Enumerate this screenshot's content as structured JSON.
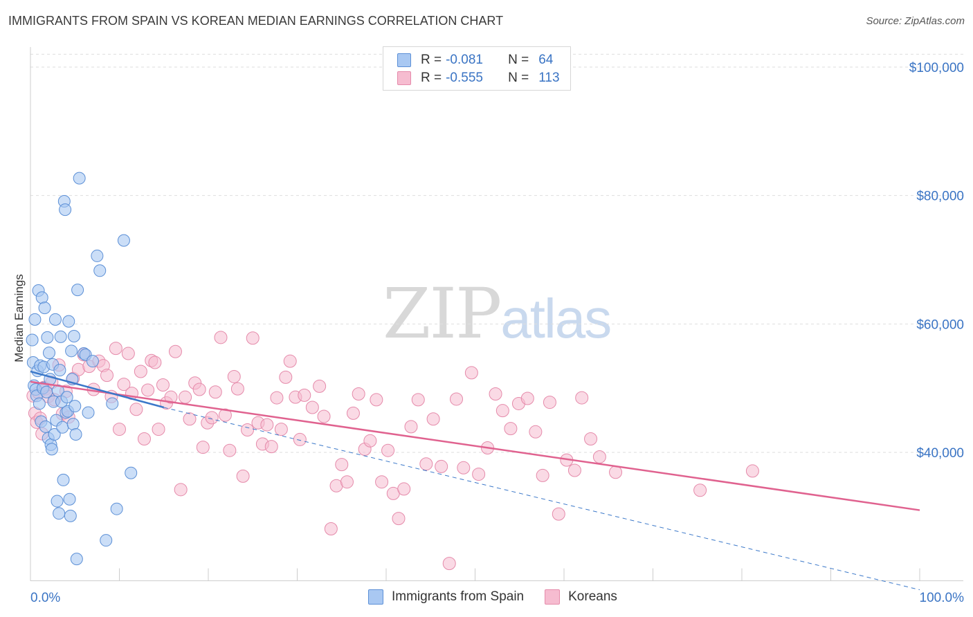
{
  "header": {
    "title": "IMMIGRANTS FROM SPAIN VS KOREAN MEDIAN EARNINGS CORRELATION CHART",
    "source": "Source: ZipAtlas.com"
  },
  "watermark": {
    "zip": "ZIP",
    "atlas": "atlas"
  },
  "legend": {
    "rows": [
      {
        "r_label": "R =",
        "r_value": "-0.081",
        "n_label": "N =",
        "n_value": "64"
      },
      {
        "r_label": "R =",
        "r_value": "-0.555",
        "n_label": "N =",
        "n_value": "113"
      }
    ]
  },
  "colors": {
    "spain_fill": "#a9c8f2",
    "spain_stroke": "#5b8fd6",
    "spain_line": "#3b78c9",
    "korean_fill": "#f6bcd0",
    "korean_stroke": "#e58aaa",
    "korean_line": "#e0628f",
    "axis_text": "#3a74c4",
    "grid": "#dedede"
  },
  "chart_data": {
    "type": "scatter",
    "title": "IMMIGRANTS FROM SPAIN VS KOREAN MEDIAN EARNINGS CORRELATION CHART",
    "xlabel": "",
    "ylabel": "Median Earnings",
    "xlim": [
      0,
      100
    ],
    "ylim": [
      20000,
      102000
    ],
    "x_tick_labels": [
      "0.0%",
      "100.0%"
    ],
    "y_ticks": [
      40000,
      60000,
      80000,
      100000
    ],
    "y_tick_labels": [
      "$40,000",
      "$60,000",
      "$80,000",
      "$100,000"
    ],
    "grid": true,
    "series": [
      {
        "name": "Immigrants from Spain",
        "r": -0.081,
        "n": 64,
        "trend": {
          "x": [
            0,
            15
          ],
          "y": [
            52600,
            47000
          ]
        },
        "trend_extended": {
          "x": [
            15,
            100
          ],
          "y": [
            47000,
            18600
          ]
        },
        "points": [
          [
            0.2,
            57500
          ],
          [
            0.3,
            54000
          ],
          [
            0.4,
            50400
          ],
          [
            0.5,
            60700
          ],
          [
            0.6,
            49800
          ],
          [
            0.7,
            48800
          ],
          [
            0.8,
            52700
          ],
          [
            0.9,
            65200
          ],
          [
            1.0,
            47600
          ],
          [
            1.1,
            53500
          ],
          [
            1.2,
            44800
          ],
          [
            1.3,
            64100
          ],
          [
            1.4,
            50000
          ],
          [
            1.5,
            53300
          ],
          [
            1.6,
            62500
          ],
          [
            1.7,
            44000
          ],
          [
            1.8,
            49400
          ],
          [
            1.9,
            57900
          ],
          [
            2.0,
            42200
          ],
          [
            2.1,
            55500
          ],
          [
            2.2,
            51400
          ],
          [
            2.3,
            41200
          ],
          [
            2.4,
            40500
          ],
          [
            2.5,
            53700
          ],
          [
            2.6,
            47900
          ],
          [
            2.7,
            42800
          ],
          [
            2.8,
            60700
          ],
          [
            2.9,
            45000
          ],
          [
            3.0,
            32400
          ],
          [
            3.1,
            49600
          ],
          [
            3.2,
            30500
          ],
          [
            3.3,
            52800
          ],
          [
            3.4,
            58000
          ],
          [
            3.5,
            47900
          ],
          [
            3.6,
            43900
          ],
          [
            3.7,
            35700
          ],
          [
            3.8,
            79100
          ],
          [
            3.9,
            77800
          ],
          [
            4.0,
            46200
          ],
          [
            4.1,
            48600
          ],
          [
            4.2,
            46400
          ],
          [
            4.3,
            60400
          ],
          [
            4.4,
            32700
          ],
          [
            4.5,
            30100
          ],
          [
            4.6,
            55800
          ],
          [
            4.7,
            51400
          ],
          [
            4.8,
            44400
          ],
          [
            4.9,
            58100
          ],
          [
            5.0,
            47200
          ],
          [
            5.1,
            42800
          ],
          [
            5.2,
            23400
          ],
          [
            5.3,
            65300
          ],
          [
            5.5,
            82700
          ],
          [
            6.0,
            55400
          ],
          [
            6.2,
            55200
          ],
          [
            6.5,
            46200
          ],
          [
            7.0,
            54200
          ],
          [
            7.5,
            70600
          ],
          [
            7.8,
            68300
          ],
          [
            8.5,
            26300
          ],
          [
            9.2,
            47600
          ],
          [
            9.7,
            31200
          ],
          [
            10.5,
            73000
          ],
          [
            11.3,
            36800
          ]
        ]
      },
      {
        "name": "Koreans",
        "r": -0.555,
        "n": 113,
        "trend": {
          "x": [
            0,
            100
          ],
          "y": [
            51000,
            31000
          ]
        },
        "points": [
          [
            0.3,
            48800
          ],
          [
            0.5,
            46100
          ],
          [
            0.7,
            44700
          ],
          [
            0.9,
            49300
          ],
          [
            1.1,
            45300
          ],
          [
            1.3,
            42900
          ],
          [
            1.5,
            50100
          ],
          [
            1.7,
            49900
          ],
          [
            2.0,
            48700
          ],
          [
            2.4,
            50900
          ],
          [
            2.7,
            48200
          ],
          [
            3.2,
            53600
          ],
          [
            3.6,
            46000
          ],
          [
            4.0,
            49500
          ],
          [
            4.3,
            45500
          ],
          [
            4.8,
            51500
          ],
          [
            5.4,
            52900
          ],
          [
            6.0,
            55200
          ],
          [
            6.6,
            53400
          ],
          [
            7.1,
            49800
          ],
          [
            7.7,
            54200
          ],
          [
            8.2,
            53500
          ],
          [
            8.6,
            52000
          ],
          [
            9.1,
            48700
          ],
          [
            9.6,
            56200
          ],
          [
            10.0,
            43600
          ],
          [
            10.5,
            50600
          ],
          [
            11.0,
            55400
          ],
          [
            11.4,
            49200
          ],
          [
            11.9,
            46700
          ],
          [
            12.4,
            52600
          ],
          [
            12.8,
            42100
          ],
          [
            13.2,
            49700
          ],
          [
            13.6,
            54300
          ],
          [
            14.0,
            54000
          ],
          [
            14.4,
            43600
          ],
          [
            14.9,
            50500
          ],
          [
            15.3,
            47700
          ],
          [
            15.8,
            48600
          ],
          [
            16.3,
            55700
          ],
          [
            16.9,
            34200
          ],
          [
            17.4,
            48600
          ],
          [
            17.9,
            45200
          ],
          [
            18.5,
            50800
          ],
          [
            19.0,
            49800
          ],
          [
            19.4,
            40800
          ],
          [
            19.9,
            44600
          ],
          [
            20.4,
            45400
          ],
          [
            20.8,
            49400
          ],
          [
            21.4,
            57900
          ],
          [
            21.9,
            45800
          ],
          [
            22.4,
            40300
          ],
          [
            22.9,
            51800
          ],
          [
            23.3,
            49900
          ],
          [
            23.9,
            36300
          ],
          [
            24.4,
            43500
          ],
          [
            25.0,
            57800
          ],
          [
            25.6,
            44600
          ],
          [
            26.1,
            41300
          ],
          [
            26.6,
            44300
          ],
          [
            27.1,
            40900
          ],
          [
            27.7,
            48500
          ],
          [
            28.2,
            43600
          ],
          [
            28.7,
            51700
          ],
          [
            29.2,
            54200
          ],
          [
            29.8,
            48600
          ],
          [
            30.3,
            42000
          ],
          [
            30.8,
            48900
          ],
          [
            31.7,
            47000
          ],
          [
            32.5,
            50300
          ],
          [
            33.0,
            45600
          ],
          [
            33.8,
            28100
          ],
          [
            34.4,
            34800
          ],
          [
            35.0,
            38100
          ],
          [
            35.6,
            35400
          ],
          [
            36.3,
            46100
          ],
          [
            36.9,
            49100
          ],
          [
            37.6,
            40500
          ],
          [
            38.2,
            41800
          ],
          [
            38.9,
            48200
          ],
          [
            39.5,
            35400
          ],
          [
            40.2,
            40300
          ],
          [
            40.8,
            33600
          ],
          [
            41.4,
            29700
          ],
          [
            42.0,
            34300
          ],
          [
            42.8,
            44000
          ],
          [
            43.6,
            48200
          ],
          [
            44.5,
            38200
          ],
          [
            45.3,
            45200
          ],
          [
            46.2,
            37800
          ],
          [
            47.1,
            22700
          ],
          [
            47.9,
            48300
          ],
          [
            48.7,
            37600
          ],
          [
            49.6,
            52400
          ],
          [
            50.4,
            36600
          ],
          [
            51.4,
            40700
          ],
          [
            52.3,
            49100
          ],
          [
            53.1,
            46500
          ],
          [
            54.0,
            43700
          ],
          [
            54.9,
            47600
          ],
          [
            55.9,
            48400
          ],
          [
            56.8,
            43200
          ],
          [
            57.6,
            36400
          ],
          [
            58.4,
            47800
          ],
          [
            59.4,
            30400
          ],
          [
            60.3,
            38800
          ],
          [
            61.2,
            37200
          ],
          [
            62.0,
            48500
          ],
          [
            63.0,
            42100
          ],
          [
            64.0,
            39300
          ],
          [
            65.8,
            36900
          ],
          [
            75.3,
            34100
          ],
          [
            81.2,
            37100
          ]
        ]
      }
    ]
  }
}
